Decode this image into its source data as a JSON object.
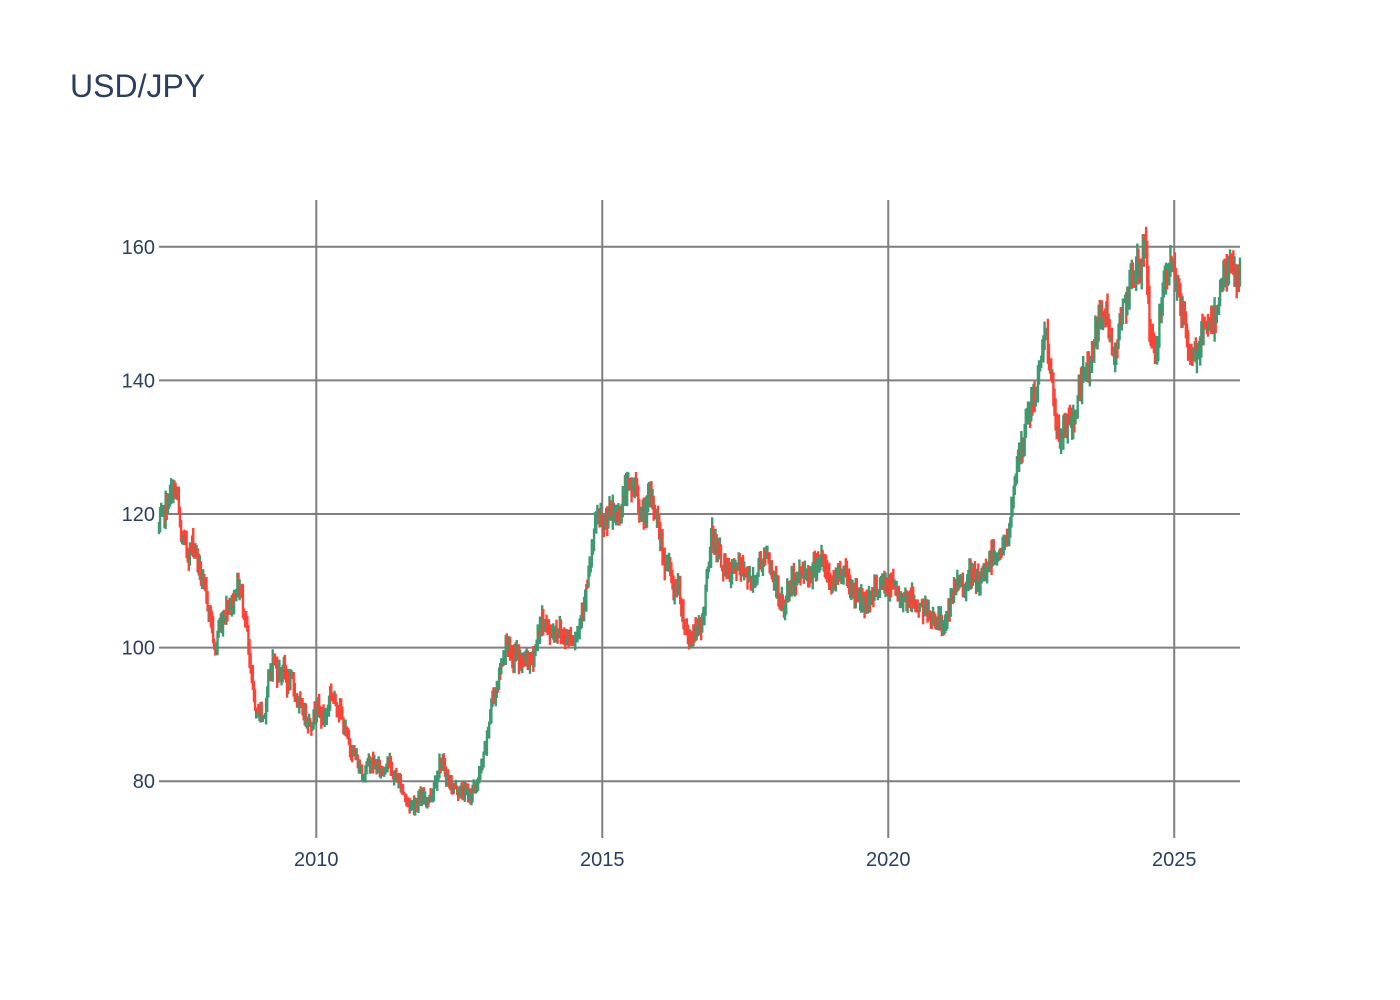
{
  "chart_data": {
    "type": "candlestick",
    "title": "USD/JPY",
    "xlabel": "",
    "ylabel": "",
    "xlim": [
      2007.25,
      2026.15
    ],
    "ylim": [
      71.5,
      167
    ],
    "x_ticks": [
      2010,
      2015,
      2020,
      2025
    ],
    "y_ticks": [
      80,
      100,
      120,
      140,
      160
    ],
    "grid": true,
    "legend": "none",
    "colors": {
      "increasing": "#3d9970",
      "decreasing": "#ff4136",
      "grid": "#7f7f7f",
      "text": "#2a3f5f"
    },
    "series": [
      {
        "values": [
          [
            2007.25,
            118.0
          ],
          [
            2007.35,
            120.5
          ],
          [
            2007.45,
            122.5
          ],
          [
            2007.5,
            124.0
          ],
          [
            2007.58,
            122.0
          ],
          [
            2007.63,
            116.5
          ],
          [
            2007.7,
            115.5
          ],
          [
            2007.78,
            114.0
          ],
          [
            2007.85,
            116.0
          ],
          [
            2007.92,
            113.5
          ],
          [
            2008.0,
            110.0
          ],
          [
            2008.08,
            107.5
          ],
          [
            2008.17,
            104.0
          ],
          [
            2008.22,
            99.0
          ],
          [
            2008.3,
            103.0
          ],
          [
            2008.38,
            104.5
          ],
          [
            2008.45,
            106.5
          ],
          [
            2008.55,
            107.0
          ],
          [
            2008.62,
            109.5
          ],
          [
            2008.7,
            107.5
          ],
          [
            2008.78,
            103.5
          ],
          [
            2008.83,
            97.5
          ],
          [
            2008.9,
            93.5
          ],
          [
            2008.95,
            90.0
          ],
          [
            2009.0,
            90.5
          ],
          [
            2009.08,
            89.5
          ],
          [
            2009.17,
            95.0
          ],
          [
            2009.25,
            98.5
          ],
          [
            2009.33,
            96.0
          ],
          [
            2009.42,
            97.0
          ],
          [
            2009.5,
            94.5
          ],
          [
            2009.58,
            95.0
          ],
          [
            2009.67,
            92.0
          ],
          [
            2009.75,
            90.5
          ],
          [
            2009.83,
            89.5
          ],
          [
            2009.92,
            88.5
          ],
          [
            2010.0,
            91.5
          ],
          [
            2010.08,
            90.0
          ],
          [
            2010.17,
            89.5
          ],
          [
            2010.25,
            93.5
          ],
          [
            2010.33,
            92.0
          ],
          [
            2010.42,
            90.5
          ],
          [
            2010.5,
            87.5
          ],
          [
            2010.58,
            85.5
          ],
          [
            2010.67,
            84.0
          ],
          [
            2010.75,
            82.0
          ],
          [
            2010.83,
            81.0
          ],
          [
            2010.92,
            83.0
          ],
          [
            2011.0,
            82.5
          ],
          [
            2011.08,
            82.0
          ],
          [
            2011.17,
            81.5
          ],
          [
            2011.25,
            83.5
          ],
          [
            2011.33,
            81.0
          ],
          [
            2011.42,
            80.5
          ],
          [
            2011.5,
            79.0
          ],
          [
            2011.58,
            77.0
          ],
          [
            2011.67,
            76.5
          ],
          [
            2011.75,
            77.0
          ],
          [
            2011.83,
            77.5
          ],
          [
            2011.92,
            77.5
          ],
          [
            2012.0,
            77.5
          ],
          [
            2012.08,
            80.0
          ],
          [
            2012.17,
            83.0
          ],
          [
            2012.25,
            81.5
          ],
          [
            2012.33,
            79.5
          ],
          [
            2012.42,
            79.0
          ],
          [
            2012.5,
            78.5
          ],
          [
            2012.58,
            78.5
          ],
          [
            2012.67,
            78.0
          ],
          [
            2012.75,
            78.5
          ],
          [
            2012.83,
            80.0
          ],
          [
            2012.92,
            83.0
          ],
          [
            2013.0,
            87.5
          ],
          [
            2013.08,
            92.5
          ],
          [
            2013.17,
            94.5
          ],
          [
            2013.25,
            98.0
          ],
          [
            2013.33,
            101.5
          ],
          [
            2013.42,
            97.5
          ],
          [
            2013.5,
            99.5
          ],
          [
            2013.58,
            97.5
          ],
          [
            2013.67,
            98.5
          ],
          [
            2013.75,
            97.5
          ],
          [
            2013.83,
            100.0
          ],
          [
            2013.92,
            103.5
          ],
          [
            2014.0,
            104.0
          ],
          [
            2014.08,
            102.0
          ],
          [
            2014.17,
            102.5
          ],
          [
            2014.25,
            102.5
          ],
          [
            2014.33,
            101.5
          ],
          [
            2014.42,
            102.0
          ],
          [
            2014.5,
            101.5
          ],
          [
            2014.58,
            102.5
          ],
          [
            2014.67,
            107.0
          ],
          [
            2014.75,
            109.5
          ],
          [
            2014.83,
            115.0
          ],
          [
            2014.92,
            120.5
          ],
          [
            2015.0,
            117.5
          ],
          [
            2015.08,
            119.5
          ],
          [
            2015.17,
            120.0
          ],
          [
            2015.25,
            119.5
          ],
          [
            2015.33,
            121.0
          ],
          [
            2015.42,
            124.0
          ],
          [
            2015.5,
            123.5
          ],
          [
            2015.58,
            124.5
          ],
          [
            2015.67,
            120.0
          ],
          [
            2015.75,
            120.0
          ],
          [
            2015.83,
            122.5
          ],
          [
            2015.92,
            121.0
          ],
          [
            2016.0,
            117.5
          ],
          [
            2016.08,
            113.0
          ],
          [
            2016.17,
            112.0
          ],
          [
            2016.25,
            108.5
          ],
          [
            2016.33,
            109.5
          ],
          [
            2016.42,
            104.5
          ],
          [
            2016.5,
            101.5
          ],
          [
            2016.58,
            102.0
          ],
          [
            2016.67,
            102.5
          ],
          [
            2016.75,
            104.0
          ],
          [
            2016.83,
            110.0
          ],
          [
            2016.92,
            117.0
          ],
          [
            2017.0,
            115.0
          ],
          [
            2017.08,
            113.0
          ],
          [
            2017.17,
            111.5
          ],
          [
            2017.25,
            110.5
          ],
          [
            2017.33,
            112.5
          ],
          [
            2017.42,
            111.5
          ],
          [
            2017.5,
            112.0
          ],
          [
            2017.58,
            109.5
          ],
          [
            2017.67,
            110.5
          ],
          [
            2017.75,
            112.5
          ],
          [
            2017.83,
            113.5
          ],
          [
            2017.92,
            112.5
          ],
          [
            2018.0,
            110.5
          ],
          [
            2018.08,
            107.5
          ],
          [
            2018.17,
            106.0
          ],
          [
            2018.25,
            108.5
          ],
          [
            2018.33,
            110.0
          ],
          [
            2018.42,
            110.5
          ],
          [
            2018.5,
            111.5
          ],
          [
            2018.58,
            111.0
          ],
          [
            2018.67,
            111.5
          ],
          [
            2018.75,
            113.0
          ],
          [
            2018.83,
            113.5
          ],
          [
            2018.92,
            111.0
          ],
          [
            2019.0,
            109.5
          ],
          [
            2019.08,
            110.5
          ],
          [
            2019.17,
            111.5
          ],
          [
            2019.25,
            111.5
          ],
          [
            2019.33,
            109.5
          ],
          [
            2019.42,
            108.0
          ],
          [
            2019.5,
            108.0
          ],
          [
            2019.58,
            106.5
          ],
          [
            2019.67,
            107.5
          ],
          [
            2019.75,
            108.5
          ],
          [
            2019.83,
            109.0
          ],
          [
            2019.92,
            109.5
          ],
          [
            2020.0,
            109.0
          ],
          [
            2020.08,
            109.5
          ],
          [
            2020.17,
            107.5
          ],
          [
            2020.25,
            108.0
          ],
          [
            2020.33,
            107.5
          ],
          [
            2020.42,
            107.0
          ],
          [
            2020.5,
            106.5
          ],
          [
            2020.58,
            106.0
          ],
          [
            2020.67,
            105.5
          ],
          [
            2020.75,
            105.0
          ],
          [
            2020.83,
            104.0
          ],
          [
            2020.92,
            103.5
          ],
          [
            2021.0,
            104.0
          ],
          [
            2021.08,
            106.0
          ],
          [
            2021.17,
            109.0
          ],
          [
            2021.25,
            109.5
          ],
          [
            2021.33,
            109.5
          ],
          [
            2021.42,
            110.5
          ],
          [
            2021.5,
            110.5
          ],
          [
            2021.58,
            109.5
          ],
          [
            2021.67,
            110.5
          ],
          [
            2021.75,
            113.0
          ],
          [
            2021.83,
            114.0
          ],
          [
            2021.92,
            114.0
          ],
          [
            2022.0,
            115.0
          ],
          [
            2022.08,
            115.5
          ],
          [
            2022.17,
            121.0
          ],
          [
            2022.25,
            128.5
          ],
          [
            2022.33,
            129.0
          ],
          [
            2022.42,
            134.0
          ],
          [
            2022.5,
            136.5
          ],
          [
            2022.58,
            137.5
          ],
          [
            2022.67,
            144.5
          ],
          [
            2022.75,
            147.5
          ],
          [
            2022.83,
            142.0
          ],
          [
            2022.92,
            134.5
          ],
          [
            2023.0,
            130.0
          ],
          [
            2023.08,
            133.5
          ],
          [
            2023.17,
            133.0
          ],
          [
            2023.25,
            134.0
          ],
          [
            2023.33,
            138.5
          ],
          [
            2023.42,
            141.0
          ],
          [
            2023.5,
            142.0
          ],
          [
            2023.58,
            145.5
          ],
          [
            2023.67,
            148.0
          ],
          [
            2023.75,
            149.5
          ],
          [
            2023.83,
            150.5
          ],
          [
            2023.92,
            143.0
          ],
          [
            2024.0,
            146.5
          ],
          [
            2024.08,
            150.0
          ],
          [
            2024.17,
            151.0
          ],
          [
            2024.25,
            154.5
          ],
          [
            2024.33,
            157.0
          ],
          [
            2024.42,
            157.5
          ],
          [
            2024.5,
            161.0
          ],
          [
            2024.58,
            146.5
          ],
          [
            2024.67,
            143.5
          ],
          [
            2024.75,
            149.0
          ],
          [
            2024.83,
            153.5
          ],
          [
            2024.92,
            156.5
          ],
          [
            2025.0,
            157.5
          ],
          [
            2025.08,
            152.5
          ],
          [
            2025.17,
            149.5
          ],
          [
            2025.25,
            143.5
          ],
          [
            2025.33,
            144.0
          ],
          [
            2025.42,
            144.5
          ],
          [
            2025.5,
            147.0
          ],
          [
            2025.58,
            147.5
          ],
          [
            2025.67,
            148.0
          ],
          [
            2025.75,
            151.5
          ],
          [
            2025.83,
            155.0
          ],
          [
            2025.92,
            156.5
          ],
          [
            2026.0,
            157.5
          ],
          [
            2026.08,
            155.0
          ],
          [
            2026.15,
            156.5
          ]
        ]
      }
    ]
  }
}
